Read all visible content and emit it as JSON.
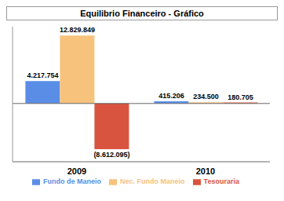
{
  "chart_data": {
    "type": "bar",
    "title": "Equilibrio Financeiro - Gráfico",
    "categories": [
      "2009",
      "2010"
    ],
    "series": [
      {
        "name": "Fundo de Maneio",
        "color": "#5a8ee6",
        "values": [
          4217754,
          415206
        ],
        "value_labels": [
          "4.217.754",
          "415.206"
        ]
      },
      {
        "name": "Nec. Fundo Maneio",
        "color": "#f7c27c",
        "values": [
          12829849,
          234500
        ],
        "value_labels": [
          "12.829.849",
          "234.500"
        ]
      },
      {
        "name": "Tesouraria",
        "color": "#d9543f",
        "values": [
          -8612095,
          180705
        ],
        "value_labels": [
          "(8.612.095)",
          "180.705"
        ]
      }
    ],
    "ylim": [
      -11000000,
      14500000
    ],
    "data_labels": true,
    "tick_labels": "x",
    "legend": "bottom",
    "grid": false
  }
}
